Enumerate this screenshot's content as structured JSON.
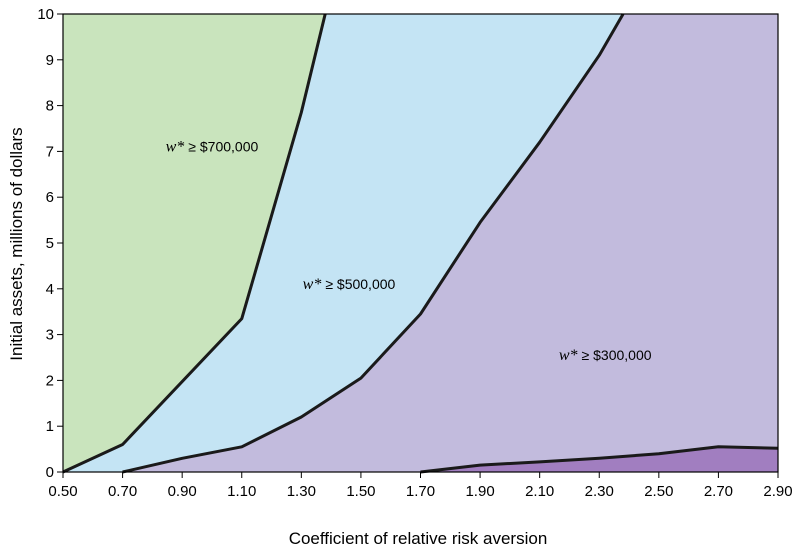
{
  "chart_data": {
    "type": "area",
    "xlabel": "Coefficient of relative risk aversion",
    "ylabel": "Initial assets, millions of dollars",
    "xlim": [
      0.5,
      2.9
    ],
    "ylim": [
      0,
      10
    ],
    "x_ticks": [
      "0.50",
      "0.70",
      "0.90",
      "1.10",
      "1.30",
      "1.50",
      "1.70",
      "1.90",
      "2.10",
      "2.30",
      "2.50",
      "2.70",
      "2.90"
    ],
    "y_ticks": [
      "0",
      "1",
      "2",
      "3",
      "4",
      "5",
      "6",
      "7",
      "8",
      "9",
      "10"
    ],
    "grid": false,
    "series": [
      {
        "name": "w* ≥ $700,000",
        "color": "#c9e4bd",
        "points": [
          [
            0.5,
            0.0
          ],
          [
            0.7,
            0.6
          ],
          [
            1.1,
            3.35
          ],
          [
            1.3,
            7.85
          ],
          [
            1.38,
            10.0
          ]
        ]
      },
      {
        "name": "w* ≥ $500,000",
        "color": "#c4e4f4",
        "points": [
          [
            0.7,
            0.0
          ],
          [
            0.9,
            0.3
          ],
          [
            1.1,
            0.55
          ],
          [
            1.3,
            1.2
          ],
          [
            1.5,
            2.05
          ],
          [
            1.7,
            3.45
          ],
          [
            1.9,
            5.45
          ],
          [
            2.1,
            7.2
          ],
          [
            2.3,
            9.1
          ],
          [
            2.38,
            10.0
          ]
        ]
      },
      {
        "name": "w* ≥ $300,000",
        "color": "#c2bbdd",
        "points": [
          [
            1.7,
            0.0
          ],
          [
            1.9,
            0.15
          ],
          [
            2.1,
            0.22
          ],
          [
            2.3,
            0.3
          ],
          [
            2.5,
            0.4
          ],
          [
            2.7,
            0.55
          ],
          [
            2.9,
            0.52
          ]
        ]
      },
      {
        "name": "",
        "color": "#a17ec0",
        "points": []
      }
    ],
    "annotations": [
      {
        "text": "≥ $700,000",
        "x": 1.0,
        "y": 7.0
      },
      {
        "text": "≥ $500,000",
        "x": 1.46,
        "y": 4.0
      },
      {
        "text": "≥ $300,000",
        "x": 2.32,
        "y": 2.45
      }
    ],
    "annotation_symbol": "w*",
    "line_color": "#1a1a1a"
  }
}
